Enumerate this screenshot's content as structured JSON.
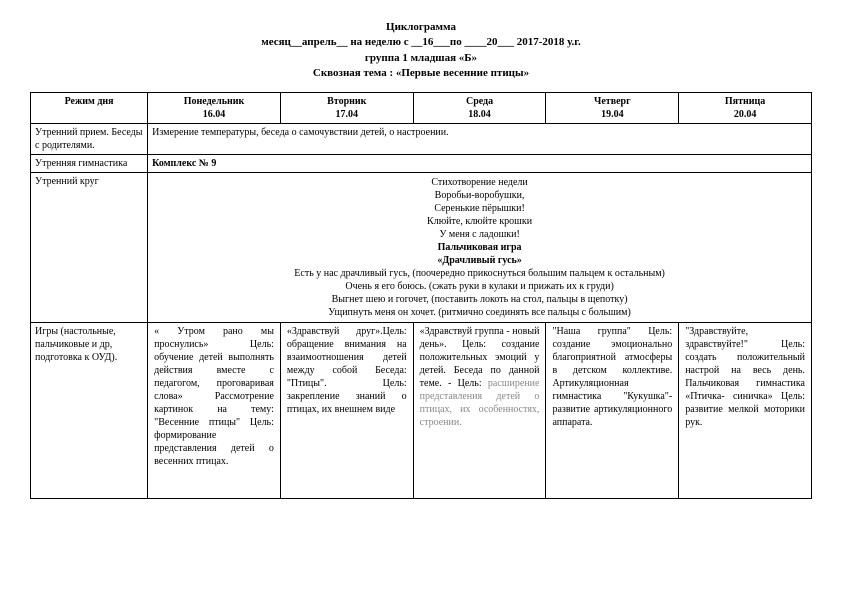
{
  "header": {
    "line1": "Циклограмма",
    "line2": "месяц__апрель__  на  неделю   с __16___по ____20___ 2017-2018 у.г.",
    "line3": "группа 1 младшая «Б»",
    "line4": "Сквозная тема : «Первые весенние птицы»"
  },
  "table": {
    "columns": {
      "regime": "Режим дня",
      "mon": {
        "name": "Понедельник",
        "date": "16.04"
      },
      "tue": {
        "name": "Вторник",
        "date": "17.04"
      },
      "wed": {
        "name": "Среда",
        "date": "18.04"
      },
      "thu": {
        "name": "Четверг",
        "date": "19.04"
      },
      "fri": {
        "name": "Пятница",
        "date": "20.04"
      }
    },
    "rows": {
      "reception": {
        "label": "Утренний прием. Беседы с родителями.",
        "merged": "Измерение температуры, беседа о самочувствии детей, о настроении."
      },
      "gym": {
        "label": "Утренняя гимнастика",
        "merged": "Комплекс № 9"
      },
      "circle": {
        "label": "Утренний круг",
        "poem": {
          "t1": "Стихотворение недели",
          "l1": "Воробьи-воробушки,",
          "l2": "Серенькие пёрышки!",
          "l3": "Клюйте, клюйте крошки",
          "l4": "У меня с ладошки!",
          "t2": "Пальчиковая игра",
          "t3": "«Драчливый гусь»",
          "g1": "Есть у нас драчливый гусь, (поочередно прикоснуться большим пальцем к остальным)",
          "g2": "Очень я его боюсь. (сжать руки в кулаки и прижать их к груди)",
          "g3": "Выгнет шею и гогочет, (поставить локоть на стол, пальцы в щепотку)",
          "g4": "Ущипнуть меня он хочет. (ритмично соединять все пальцы с большим)"
        }
      },
      "games": {
        "label": "Игры (настольные, пальчиковые и др, подготовка к  ОУД).",
        "mon": "« Утром рано мы проснулись»\nЦель: обучение детей выполнять действия вместе с педагогом, проговаривая слова»\nРассмотрение картинок на тему: \"Весенние птицы\"\nЦель: формирование представления детей о весенних птицах.",
        "tue_main": "«Здравствуй друг».Цель: обращение внимания на взаимоотношения детей между собой Беседа: \"Птицы\". Цель: закрепление знаний о птицах, их внешнем виде",
        "wed_main": "«Здравствуй группа - новый день». Цель: создание положительных эмоций у детей. Беседа по данной теме. - Цель: ",
        "wed_faded": "расширение представления детей о птицах, их особенностях, строении.",
        "thu": "\"Наша группа\" Цель: создание эмоционально благоприятной атмосферы в детском коллективе. Артикуляционная гимнастика \"Кукушка\"-развитие артикуляционного аппарата.",
        "fri": "\"Здравствуйте, здравствуйте!\" Цель: создать положительный настрой на весь день. Пальчиковая гимнастика «Птичка- синичка» Цель: развитие мелкой моторики рук."
      }
    }
  },
  "style": {
    "background_color": "#ffffff",
    "text_color": "#000000",
    "border_color": "#000000",
    "faded_color": "#888888",
    "font_family": "Times New Roman",
    "base_fontsize": 11,
    "table_fontsize": 10
  }
}
